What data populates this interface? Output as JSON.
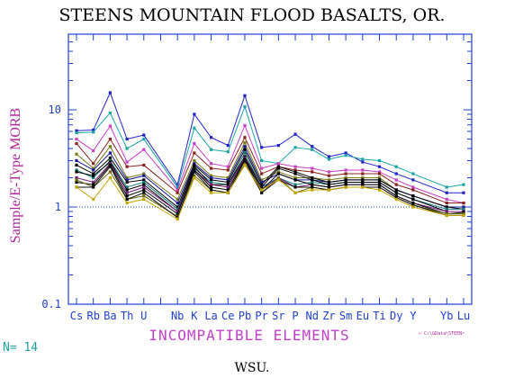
{
  "chart_data": {
    "type": "line",
    "title": "STEENS MOUNTAIN FLOOD BASALTS, OR.",
    "ylabel": "Sample/E-Type MORB",
    "xlabel": "INCOMPATIBLE ELEMENTS",
    "y_scale": "log",
    "ylim": [
      0.1,
      60
    ],
    "ytick_labels": [
      "10",
      "1",
      "0.1"
    ],
    "ytick_values": [
      10,
      1,
      0.1
    ],
    "reference_line": 1,
    "categories": [
      "Cs",
      "Rb",
      "Ba",
      "Th",
      "U",
      "Nb",
      "K",
      "La",
      "Ce",
      "Pb",
      "Pr",
      "Sr",
      "P",
      "Nd",
      "Zr",
      "Sm",
      "Eu",
      "Ti",
      "Dy",
      "Y",
      "Yb",
      "Lu"
    ],
    "category_slots": [
      0,
      1,
      2,
      3,
      4,
      6,
      7,
      8,
      9,
      10,
      11,
      12,
      13,
      14,
      15,
      16,
      17,
      18,
      19,
      20,
      22,
      23
    ],
    "series": [
      {
        "color": "#2222c8",
        "values": [
          6.1,
          6.2,
          15.0,
          5.0,
          5.5,
          1.7,
          9.0,
          5.2,
          4.3,
          14.0,
          4.1,
          4.3,
          5.6,
          4.2,
          3.3,
          3.6,
          2.9,
          2.6,
          2.2,
          1.9,
          1.4,
          1.4
        ]
      },
      {
        "color": "#17a6a6",
        "values": [
          5.8,
          5.9,
          9.3,
          4.0,
          5.0,
          1.6,
          6.5,
          3.9,
          3.7,
          10.8,
          3.0,
          2.8,
          4.1,
          3.9,
          3.1,
          3.4,
          3.1,
          3.0,
          2.6,
          2.2,
          1.6,
          1.7
        ]
      },
      {
        "color": "#c83fc8",
        "values": [
          5.0,
          3.8,
          6.8,
          2.9,
          3.9,
          1.5,
          4.5,
          2.8,
          2.6,
          6.9,
          2.5,
          2.8,
          2.6,
          2.5,
          2.3,
          2.4,
          2.4,
          2.3,
          1.9,
          1.6,
          1.2,
          1.1
        ]
      },
      {
        "color": "#8a2020",
        "values": [
          4.5,
          2.8,
          5.0,
          2.6,
          2.7,
          1.4,
          3.6,
          2.5,
          2.4,
          5.2,
          2.2,
          2.6,
          2.4,
          2.3,
          2.1,
          2.2,
          2.2,
          2.2,
          1.7,
          1.5,
          1.1,
          1.1
        ]
      },
      {
        "color": "#7a7a14",
        "values": [
          3.5,
          2.5,
          4.2,
          2.0,
          2.2,
          1.2,
          3.0,
          2.1,
          2.0,
          4.6,
          1.9,
          2.3,
          2.0,
          2.0,
          1.9,
          2.0,
          2.0,
          2.0,
          1.5,
          1.3,
          1.0,
          1.0
        ]
      },
      {
        "color": "#1818a0",
        "values": [
          3.0,
          2.4,
          3.6,
          1.9,
          2.1,
          1.1,
          2.8,
          2.0,
          1.9,
          4.2,
          1.8,
          2.2,
          1.9,
          1.9,
          1.8,
          1.9,
          1.9,
          1.9,
          1.5,
          1.3,
          1.0,
          1.0
        ]
      },
      {
        "color": "#000000",
        "values": [
          2.7,
          2.2,
          3.2,
          1.8,
          1.9,
          1.0,
          2.7,
          1.9,
          1.8,
          3.9,
          1.7,
          2.6,
          2.3,
          2.0,
          1.8,
          1.9,
          1.9,
          1.9,
          1.5,
          1.3,
          1.0,
          0.95
        ]
      },
      {
        "color": "#117a7a",
        "values": [
          2.4,
          2.0,
          3.0,
          1.6,
          1.8,
          0.95,
          2.5,
          1.8,
          1.7,
          3.6,
          1.6,
          2.0,
          1.7,
          1.8,
          1.7,
          1.8,
          1.8,
          1.8,
          1.4,
          1.2,
          0.95,
          0.95
        ]
      },
      {
        "color": "#000000",
        "values": [
          2.3,
          2.1,
          2.9,
          1.5,
          1.7,
          0.9,
          2.6,
          1.7,
          1.7,
          3.3,
          1.6,
          2.5,
          2.2,
          1.9,
          1.7,
          1.8,
          1.8,
          1.8,
          1.4,
          1.2,
          0.9,
          0.9
        ]
      },
      {
        "color": "#7a1a7a",
        "values": [
          2.0,
          1.8,
          2.8,
          1.4,
          1.6,
          0.9,
          2.4,
          1.7,
          1.6,
          3.2,
          1.5,
          2.0,
          1.6,
          1.7,
          1.6,
          1.7,
          1.7,
          1.7,
          1.3,
          1.1,
          0.9,
          0.9
        ]
      },
      {
        "color": "#000000",
        "values": [
          1.8,
          1.7,
          2.7,
          1.3,
          1.5,
          0.85,
          2.4,
          1.6,
          1.5,
          3.1,
          1.5,
          2.2,
          1.9,
          1.7,
          1.6,
          1.7,
          1.7,
          1.7,
          1.3,
          1.1,
          0.85,
          0.88
        ]
      },
      {
        "color": "#6a6a10",
        "values": [
          1.9,
          1.6,
          2.3,
          1.2,
          1.3,
          0.8,
          2.1,
          1.5,
          1.4,
          2.8,
          1.4,
          2.0,
          1.4,
          1.6,
          1.5,
          1.6,
          1.6,
          1.6,
          1.25,
          1.05,
          0.85,
          0.85
        ]
      },
      {
        "color": "#111111",
        "values": [
          1.6,
          1.6,
          2.6,
          1.2,
          1.4,
          0.78,
          2.3,
          1.5,
          1.4,
          3.0,
          1.4,
          1.9,
          1.6,
          1.6,
          1.5,
          1.6,
          1.6,
          1.6,
          1.25,
          1.05,
          0.82,
          0.82
        ]
      },
      {
        "color": "#c8a800",
        "values": [
          1.6,
          1.2,
          2.0,
          1.1,
          1.2,
          0.75,
          2.0,
          1.4,
          1.4,
          2.7,
          1.5,
          1.9,
          1.4,
          1.5,
          1.5,
          1.6,
          1.6,
          1.5,
          1.2,
          1.0,
          0.82,
          0.82
        ]
      }
    ]
  },
  "n_label": "N= 14",
  "path_note": "← C:\\GData\\STEEN~",
  "footer": "WSU."
}
